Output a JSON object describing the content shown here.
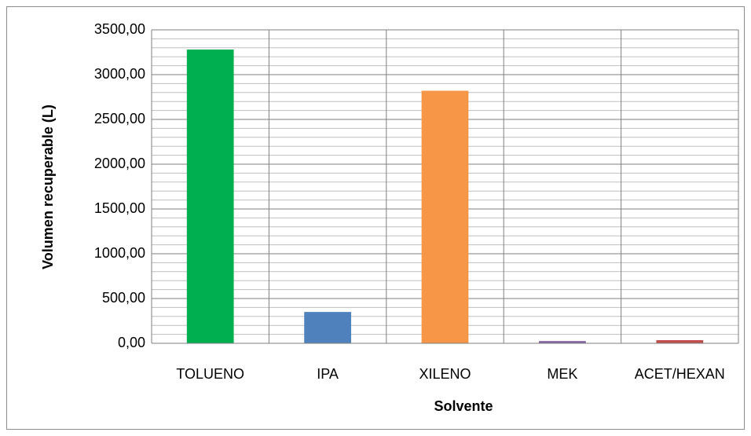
{
  "chart_data": {
    "type": "bar",
    "x_label": "Solvente",
    "y_label": "Volumen recuperable (L)",
    "categories": [
      "TOLUENO",
      "IPA",
      "XILENO",
      "MEK",
      "ACET/HEXAN"
    ],
    "values": [
      3280,
      350,
      2820,
      25,
      35
    ],
    "colors": [
      "#00b050",
      "#4f81bd",
      "#f79646",
      "#8064a2",
      "#c0504d"
    ],
    "ylim": [
      0,
      3500
    ],
    "yticks": [
      {
        "value": 0,
        "label": "0,00"
      },
      {
        "value": 500,
        "label": "500,00"
      },
      {
        "value": 1000,
        "label": "1000,00"
      },
      {
        "value": 1500,
        "label": "1500,00"
      },
      {
        "value": 2000,
        "label": "2000,00"
      },
      {
        "value": 2500,
        "label": "2500,00"
      },
      {
        "value": 3000,
        "label": "3000,00"
      },
      {
        "value": 3500,
        "label": "3500,00"
      }
    ],
    "minor_yticks": [
      100,
      200,
      300,
      400,
      600,
      700,
      800,
      900,
      1100,
      1200,
      1300,
      1400,
      1600,
      1700,
      1800,
      1900,
      2100,
      2200,
      2300,
      2400,
      2600,
      2700,
      2800,
      2900,
      3100,
      3200,
      3300,
      3400
    ],
    "grid": true
  }
}
